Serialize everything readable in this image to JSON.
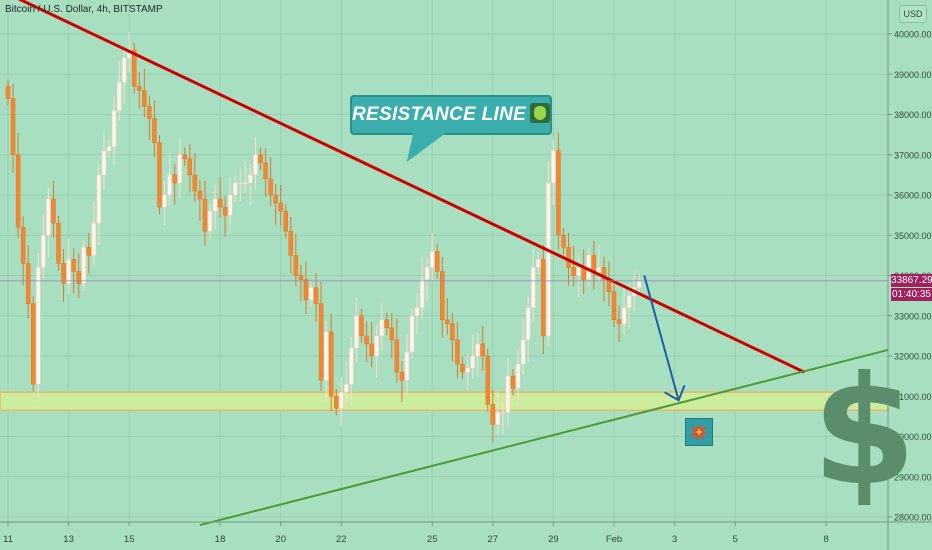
{
  "chart_data": {
    "type": "candlestick",
    "title": "Bitcoin / U.S. Dollar, 4h, BITSTAMP",
    "currency": "USD",
    "y_ticks": [
      28000,
      29000,
      30000,
      31000,
      32000,
      33000,
      34000,
      35000,
      36000,
      37000,
      38000,
      39000,
      40000
    ],
    "y_tick_labels": [
      "28000.00",
      "29000.00",
      "30000.00",
      "31000.00",
      "32000.00",
      "33000.00",
      "34000.00",
      "35000.00",
      "36000.00",
      "37000.00",
      "38000.00",
      "39000.00",
      "40000.00"
    ],
    "ylim": [
      27800,
      40400
    ],
    "x_tick_labels": [
      "11",
      "13",
      "15",
      "18",
      "20",
      "22",
      "25",
      "27",
      "29",
      "Feb",
      "3",
      "5",
      "8"
    ],
    "x_tick_index": [
      0,
      12,
      24,
      42,
      54,
      66,
      84,
      96,
      108,
      120,
      132,
      144,
      162
    ],
    "grid": true,
    "last_price": 33867.29,
    "last_price_label": "33867.29",
    "countdown_label": "01:40:35",
    "closes": [
      38400,
      37000,
      35200,
      34300,
      33300,
      31300,
      34200,
      35000,
      35900,
      35300,
      34300,
      33800,
      34400,
      34100,
      33800,
      34700,
      34500,
      35300,
      36500,
      37100,
      37200,
      38100,
      38800,
      39400,
      39600,
      38700,
      38600,
      38200,
      37900,
      37300,
      35700,
      36000,
      36500,
      36300,
      37000,
      36900,
      36500,
      36100,
      35900,
      35100,
      35600,
      35900,
      35700,
      35500,
      36000,
      36300,
      36300,
      36300,
      36500,
      37000,
      36800,
      36400,
      36000,
      35800,
      35600,
      35100,
      34500,
      34000,
      33900,
      33400,
      33700,
      33300,
      31400,
      32600,
      31000,
      30700,
      31100,
      31300,
      32200,
      33000,
      32500,
      32300,
      32000,
      32500,
      32900,
      32700,
      32400,
      31600,
      31400,
      32100,
      33000,
      33200,
      33900,
      34200,
      34600,
      34100,
      32900,
      32800,
      32400,
      31800,
      31600,
      31700,
      32000,
      32300,
      32000,
      30800,
      30300,
      30600,
      30600,
      31500,
      31200,
      31800,
      32400,
      33200,
      34200,
      34400,
      32500,
      36300,
      37100,
      35000,
      34700,
      34200,
      34000,
      34200,
      33900,
      34500,
      34100,
      34200,
      33900,
      33600,
      32900,
      32800,
      33200,
      33500,
      33700,
      33870
    ],
    "annotations": [
      "RESISTANCE LINE",
      "$"
    ],
    "resistance_line": {
      "start": {
        "index": 0,
        "price": 41000
      },
      "end": {
        "index": 130,
        "price": 33250
      }
    },
    "support_line": {
      "start": {
        "index": 38,
        "price": 27800
      },
      "end": {
        "index": 146,
        "price": 32150
      }
    },
    "support_zone": [
      30650,
      31100
    ],
    "projection_arrow": {
      "start": {
        "index": 126,
        "price": 34000
      },
      "end": {
        "index": 132,
        "price": 30900
      }
    },
    "colors": {
      "background": "#a8dfc0",
      "up": "#fff4ec",
      "down": "#f28633",
      "resistance": "#cc0000",
      "support": "#4c9a36",
      "zone": "#ccec9e",
      "arrow": "#1e5ea8",
      "price_tag": "#a3205f"
    }
  }
}
